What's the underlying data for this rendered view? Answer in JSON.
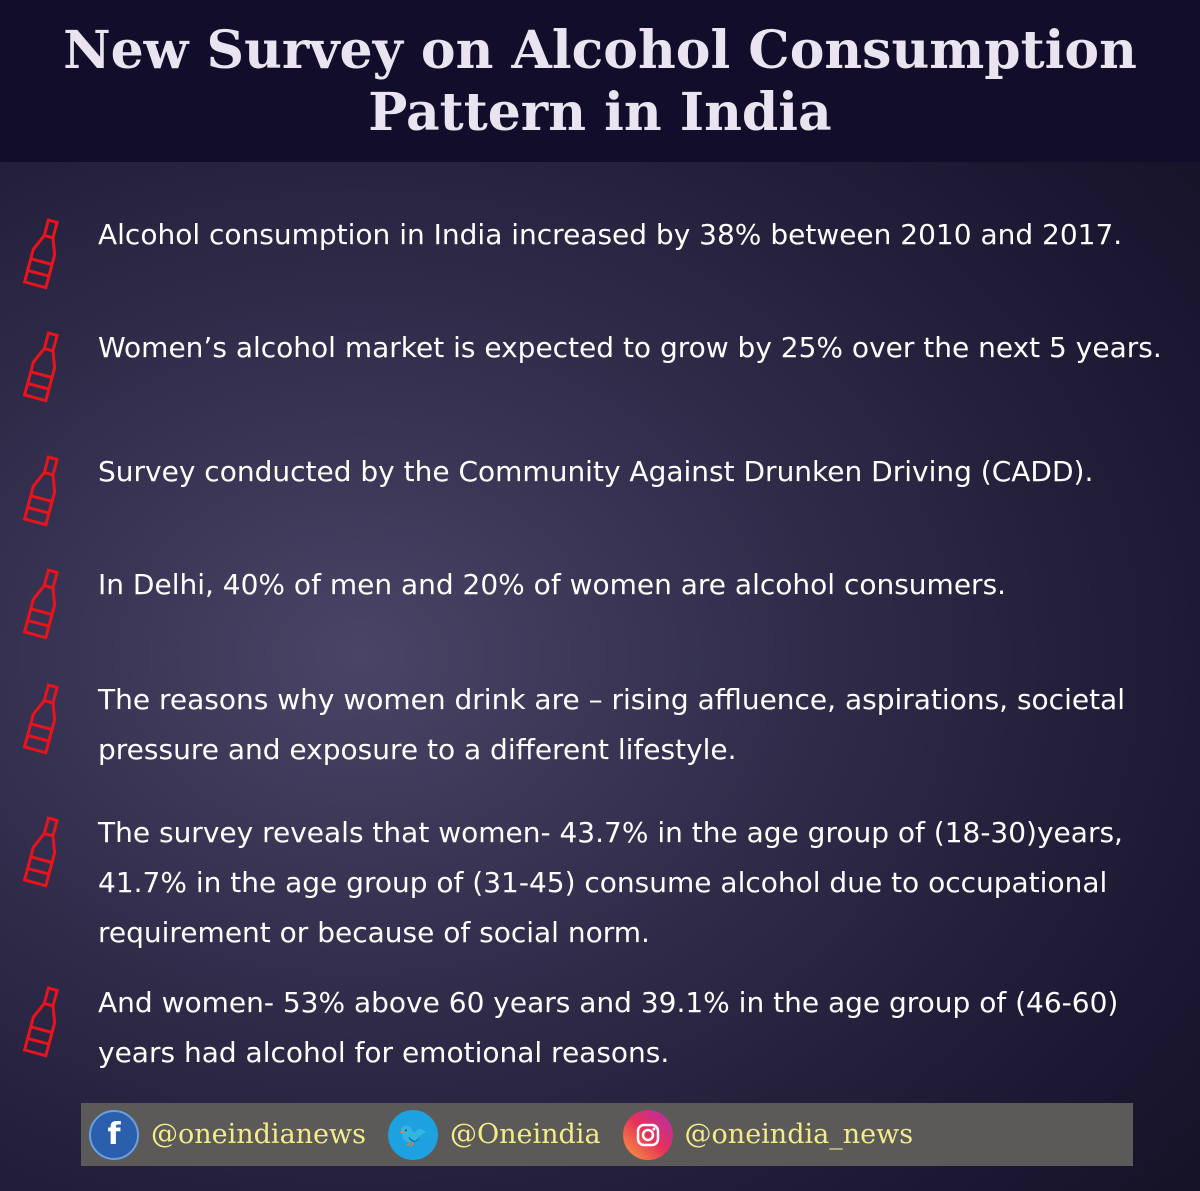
{
  "title": {
    "line1": "New Survey on Alcohol Consumption",
    "line2": "Pattern in India"
  },
  "bullet_icon": "wine-bottle-icon",
  "bullet_color": "#e8141c",
  "items": [
    "Alcohol consumption in India increased by 38% between 2010 and 2017.",
    "Women’s alcohol market is expected to grow by 25% over the next 5 years.",
    "Survey conducted by the Community Against Drunken Driving (CADD).",
    "In Delhi, 40% of men and 20% of women are alcohol consumers.",
    "The reasons why women drink are – rising affluence, aspirations, societal pressure and exposure to a different lifestyle.",
    "The survey reveals that women- 43.7% in the age group of (18-30)years, 41.7% in the age group of (31-45) consume alcohol due to occupational requirement or because of social norm.",
    "And women- 53% above 60 years and 39.1% in the age group of (46-60) years had alcohol for emotional reasons."
  ],
  "footer": {
    "facebook": {
      "icon": "facebook-icon",
      "handle": "@oneindianews"
    },
    "twitter": {
      "icon": "twitter-icon",
      "handle": "@Oneindia"
    },
    "instagram": {
      "icon": "instagram-icon",
      "handle": "@oneindia_news"
    }
  }
}
